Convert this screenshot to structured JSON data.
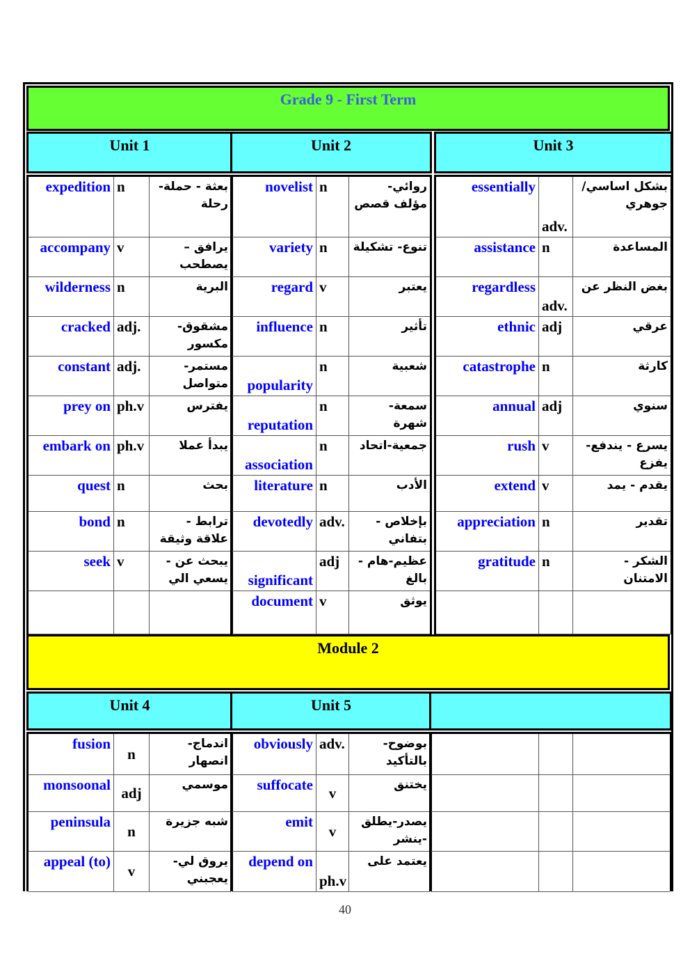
{
  "title": "Grade   9  -  First Term",
  "module2": "Module 2",
  "page_number": "40",
  "colors": {
    "title_bar": "#66ff33",
    "unit_header": "#66ffff",
    "module_bar": "#ffff00",
    "word": "#0000ff"
  },
  "units": [
    {
      "label": "Unit   1",
      "rows": [
        [
          "expedition",
          "n",
          "بعثة - حملة- رحلة"
        ],
        [
          "accompany",
          "v",
          "يرافق – يصطحب"
        ],
        [
          "wilderness",
          "n",
          "البرية"
        ],
        [
          "cracked",
          "adj.",
          "مشقوق- مكسور"
        ],
        [
          "constant",
          "adj.",
          "مستمر- متواصل"
        ],
        [
          "prey on",
          "ph.v",
          "يفترس"
        ],
        [
          "embark on",
          "ph.v",
          "يبدأ عملا"
        ],
        [
          "quest",
          "n",
          "بحث"
        ],
        [
          "bond",
          "n",
          "ترابط - علاقة وثيقة"
        ],
        [
          "seek",
          "v",
          "يبحث عن - يسعي الي"
        ],
        [
          "",
          "",
          ""
        ]
      ]
    },
    {
      "label": "Unit   2",
      "rows": [
        [
          "novelist",
          "n",
          "روائي- مؤلف قصص"
        ],
        [
          "variety",
          "n",
          "تنوع- تشكيلة"
        ],
        [
          "regard",
          "v",
          "يعتبر"
        ],
        [
          "influence",
          "n",
          "تأثير"
        ],
        [
          "popularity",
          "n",
          "شعبية"
        ],
        [
          "reputation",
          "n",
          "سمعة- شهرة"
        ],
        [
          "association",
          "n",
          "جمعية-اتحاد"
        ],
        [
          "literature",
          "n",
          "الأدب"
        ],
        [
          "devotedly",
          "adv.",
          "بإخلاص - بتفاني"
        ],
        [
          "significant",
          "adj",
          "عظيم-هام - بالغ"
        ],
        [
          "document",
          "v",
          "يوثق"
        ]
      ]
    },
    {
      "label": "Unit   3",
      "rows": [
        [
          "essentially",
          "adv.",
          "بشكل اساسي/جوهري"
        ],
        [
          "assistance",
          "n",
          "المساعدة"
        ],
        [
          "regardless",
          "adv.",
          "بغض النظر عن"
        ],
        [
          "ethnic",
          "adj",
          "عرقي"
        ],
        [
          "catastrophe",
          "n",
          "كارثة"
        ],
        [
          "annual",
          "adj",
          "سنوي"
        ],
        [
          "rush",
          "v",
          "يسرع - يندفع- يفزع"
        ],
        [
          "extend",
          "v",
          "يقدم - يمد"
        ],
        [
          "appreciation",
          "n",
          "تقدير"
        ],
        [
          "gratitude",
          "n",
          "الشكر - الامتنان"
        ],
        [
          "",
          "",
          ""
        ]
      ]
    },
    {
      "label": "Unit 4",
      "rows": [
        [
          "fusion",
          "n",
          "اندماج- انصهار"
        ],
        [
          "monsoonal",
          "adj",
          "موسمي"
        ],
        [
          "peninsula",
          "n",
          "شبه جزيرة"
        ],
        [
          "appeal  (to)",
          "v",
          "يروق لي- يعجبني"
        ]
      ]
    },
    {
      "label": "Unit 5",
      "rows": [
        [
          "obviously",
          "adv.",
          "بوضوح- بالتأكيد"
        ],
        [
          "suffocate",
          "v",
          "يختنق"
        ],
        [
          "emit",
          "v",
          "يصدر-يطلق -ينشر"
        ],
        [
          "depend  on",
          "ph.v",
          "يعتمد على"
        ]
      ]
    },
    {
      "label": "",
      "rows": [
        [
          "",
          "",
          ""
        ],
        [
          "",
          "",
          ""
        ],
        [
          "",
          "",
          ""
        ],
        [
          "",
          "",
          ""
        ]
      ]
    }
  ]
}
